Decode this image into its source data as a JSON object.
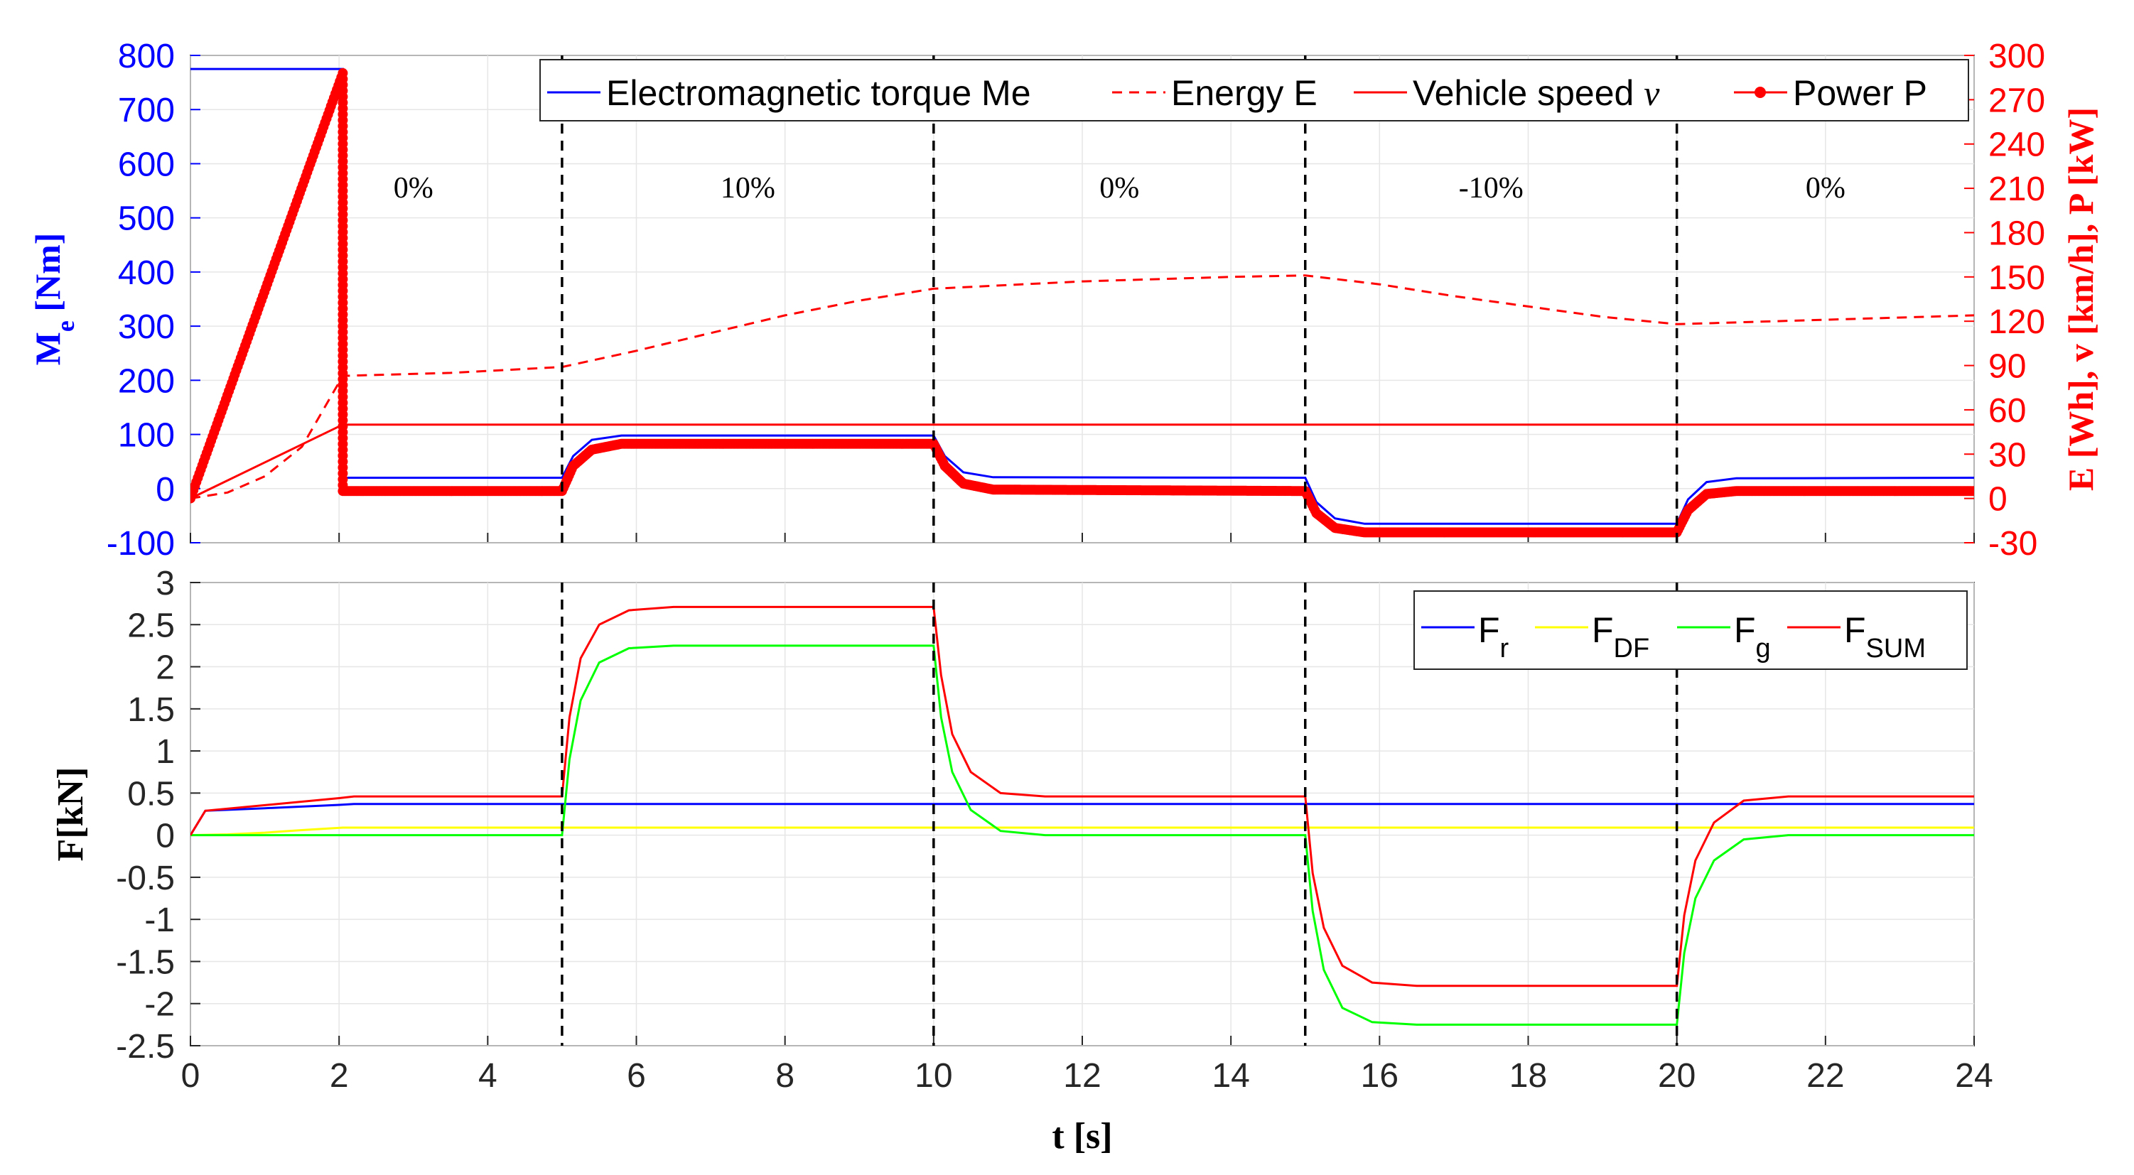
{
  "chart_data": [
    {
      "type": "line",
      "panel": "top",
      "ylabel_left_main": "M",
      "ylabel_left_sub": "e",
      "ylabel_left_unit": " [Nm]",
      "ylabel_right": "E [Wh], v [km/h], P [kW]",
      "xlim": [
        0,
        24
      ],
      "ylim_left": [
        -100,
        800
      ],
      "ylim_right": [
        -30,
        300
      ],
      "yticks_left": [
        "-100",
        "0",
        "100",
        "200",
        "300",
        "400",
        "500",
        "600",
        "700",
        "800"
      ],
      "yticks_right": [
        "-30",
        "0",
        "30",
        "60",
        "90",
        "120",
        "150",
        "180",
        "210",
        "240",
        "270",
        "300"
      ],
      "grid": true,
      "legend": {
        "position": "top-right",
        "entries": [
          {
            "label": "Electromagnetic torque Me",
            "color": "#0000ff",
            "style": "solid"
          },
          {
            "label": "Energy E",
            "color": "#ff0000",
            "style": "dashed"
          },
          {
            "label": "Vehicle speed ",
            "symbol": "ν",
            "color": "#ff0000",
            "style": "solid"
          },
          {
            "label": "Power P",
            "color": "#ff0000",
            "style": "marker"
          }
        ]
      },
      "annotations": [
        {
          "x": 3.0,
          "text": "0%"
        },
        {
          "x": 7.5,
          "text": "10%"
        },
        {
          "x": 12.5,
          "text": "0%"
        },
        {
          "x": 17.5,
          "text": "-10%"
        },
        {
          "x": 22.0,
          "text": "0%"
        }
      ],
      "segment_boundaries": [
        5,
        10,
        15,
        20
      ],
      "series": [
        {
          "name": "Electromagnetic torque Me",
          "axis": "left",
          "color": "#0000ff",
          "points": [
            [
              0,
              775
            ],
            [
              2.05,
              775
            ],
            [
              2.05,
              20
            ],
            [
              5,
              20
            ],
            [
              5.15,
              60
            ],
            [
              5.4,
              90
            ],
            [
              5.8,
              98
            ],
            [
              10,
              98
            ],
            [
              10.15,
              60
            ],
            [
              10.4,
              30
            ],
            [
              10.8,
              21
            ],
            [
              15,
              20
            ],
            [
              15.15,
              -25
            ],
            [
              15.4,
              -55
            ],
            [
              15.8,
              -65
            ],
            [
              20,
              -65
            ],
            [
              20.15,
              -20
            ],
            [
              20.4,
              12
            ],
            [
              20.8,
              19
            ],
            [
              24,
              20
            ]
          ]
        },
        {
          "name": "Energy E",
          "axis": "right",
          "color": "#ff0000",
          "points": [
            [
              0,
              0
            ],
            [
              0.5,
              4
            ],
            [
              1,
              15
            ],
            [
              1.5,
              35
            ],
            [
              2.05,
              83
            ],
            [
              3.5,
              85
            ],
            [
              5,
              89
            ],
            [
              6,
              100
            ],
            [
              7,
              112
            ],
            [
              8,
              124
            ],
            [
              9,
              134
            ],
            [
              10,
              142
            ],
            [
              12,
              147
            ],
            [
              14,
              150
            ],
            [
              15,
              151
            ],
            [
              16,
              145
            ],
            [
              17,
              137
            ],
            [
              18,
              130
            ],
            [
              19,
              123
            ],
            [
              20,
              118
            ],
            [
              22,
              121
            ],
            [
              24,
              124
            ]
          ]
        },
        {
          "name": "Vehicle speed v",
          "axis": "right",
          "color": "#ff0000",
          "points": [
            [
              0,
              0
            ],
            [
              2.05,
              50
            ],
            [
              24,
              50
            ]
          ]
        },
        {
          "name": "Power P",
          "axis": "right",
          "color": "#ff0000",
          "points": [
            [
              0,
              0
            ],
            [
              2.05,
              288
            ],
            [
              2.05,
              5
            ],
            [
              5,
              5
            ],
            [
              5.15,
              22
            ],
            [
              5.4,
              33
            ],
            [
              5.8,
              37
            ],
            [
              10,
              37
            ],
            [
              10.15,
              22
            ],
            [
              10.4,
              10
            ],
            [
              10.8,
              6
            ],
            [
              15,
              5
            ],
            [
              15.15,
              -10
            ],
            [
              15.4,
              -20
            ],
            [
              15.8,
              -23
            ],
            [
              20,
              -23
            ],
            [
              20.15,
              -8
            ],
            [
              20.4,
              3
            ],
            [
              20.8,
              5
            ],
            [
              24,
              5
            ]
          ]
        }
      ]
    },
    {
      "type": "line",
      "panel": "bottom",
      "xlabel": "t [s]",
      "ylabel": "F[kN]",
      "xlim": [
        0,
        24
      ],
      "ylim": [
        -2.5,
        3
      ],
      "xticks": [
        "0",
        "2",
        "4",
        "6",
        "8",
        "10",
        "12",
        "14",
        "16",
        "18",
        "20",
        "22",
        "24"
      ],
      "yticks": [
        "-2.5",
        "-2",
        "-1.5",
        "-1",
        "-0.5",
        "0",
        "0.5",
        "1",
        "1.5",
        "2",
        "2.5",
        "3"
      ],
      "grid": true,
      "segment_boundaries": [
        5,
        10,
        15,
        20
      ],
      "legend": {
        "position": "top-right",
        "entries": [
          {
            "main": "F",
            "sub": "r",
            "color": "#0000ff"
          },
          {
            "main": "F",
            "sub": "DF",
            "color": "#ffff00"
          },
          {
            "main": "F",
            "sub": "g",
            "color": "#00ff00"
          },
          {
            "main": "F",
            "sub": "SUM",
            "color": "#ff0000"
          }
        ]
      },
      "series": [
        {
          "name": "Fr",
          "color": "#0000ff",
          "points": [
            [
              0,
              0
            ],
            [
              0.2,
              0.29
            ],
            [
              1,
              0.32
            ],
            [
              2,
              0.36
            ],
            [
              2.2,
              0.37
            ],
            [
              24,
              0.37
            ]
          ]
        },
        {
          "name": "FDF",
          "color": "#ffff00",
          "points": [
            [
              0,
              0
            ],
            [
              0.5,
              0.01
            ],
            [
              1,
              0.03
            ],
            [
              1.5,
              0.06
            ],
            [
              2.05,
              0.09
            ],
            [
              24,
              0.09
            ]
          ]
        },
        {
          "name": "Fg",
          "color": "#00ff00",
          "points": [
            [
              0,
              0
            ],
            [
              5,
              0
            ],
            [
              5.1,
              0.9
            ],
            [
              5.25,
              1.6
            ],
            [
              5.5,
              2.05
            ],
            [
              5.9,
              2.22
            ],
            [
              6.5,
              2.25
            ],
            [
              10,
              2.25
            ],
            [
              10.1,
              1.4
            ],
            [
              10.25,
              0.75
            ],
            [
              10.5,
              0.3
            ],
            [
              10.9,
              0.05
            ],
            [
              11.5,
              0
            ],
            [
              15,
              0
            ],
            [
              15.1,
              -0.9
            ],
            [
              15.25,
              -1.6
            ],
            [
              15.5,
              -2.05
            ],
            [
              15.9,
              -2.22
            ],
            [
              16.5,
              -2.25
            ],
            [
              20,
              -2.25
            ],
            [
              20.1,
              -1.4
            ],
            [
              20.25,
              -0.75
            ],
            [
              20.5,
              -0.3
            ],
            [
              20.9,
              -0.05
            ],
            [
              21.5,
              0
            ],
            [
              24,
              0
            ]
          ]
        },
        {
          "name": "FSUM",
          "color": "#ff0000",
          "points": [
            [
              0,
              0
            ],
            [
              0.2,
              0.29
            ],
            [
              2,
              0.44
            ],
            [
              2.2,
              0.46
            ],
            [
              5,
              0.46
            ],
            [
              5.1,
              1.4
            ],
            [
              5.25,
              2.1
            ],
            [
              5.5,
              2.5
            ],
            [
              5.9,
              2.67
            ],
            [
              6.5,
              2.71
            ],
            [
              10,
              2.71
            ],
            [
              10.1,
              1.9
            ],
            [
              10.25,
              1.2
            ],
            [
              10.5,
              0.75
            ],
            [
              10.9,
              0.5
            ],
            [
              11.5,
              0.46
            ],
            [
              15,
              0.46
            ],
            [
              15.1,
              -0.45
            ],
            [
              15.25,
              -1.1
            ],
            [
              15.5,
              -1.55
            ],
            [
              15.9,
              -1.75
            ],
            [
              16.5,
              -1.79
            ],
            [
              20,
              -1.79
            ],
            [
              20.1,
              -0.95
            ],
            [
              20.25,
              -0.3
            ],
            [
              20.5,
              0.15
            ],
            [
              20.9,
              0.41
            ],
            [
              21.5,
              0.46
            ],
            [
              24,
              0.46
            ]
          ]
        }
      ]
    }
  ]
}
